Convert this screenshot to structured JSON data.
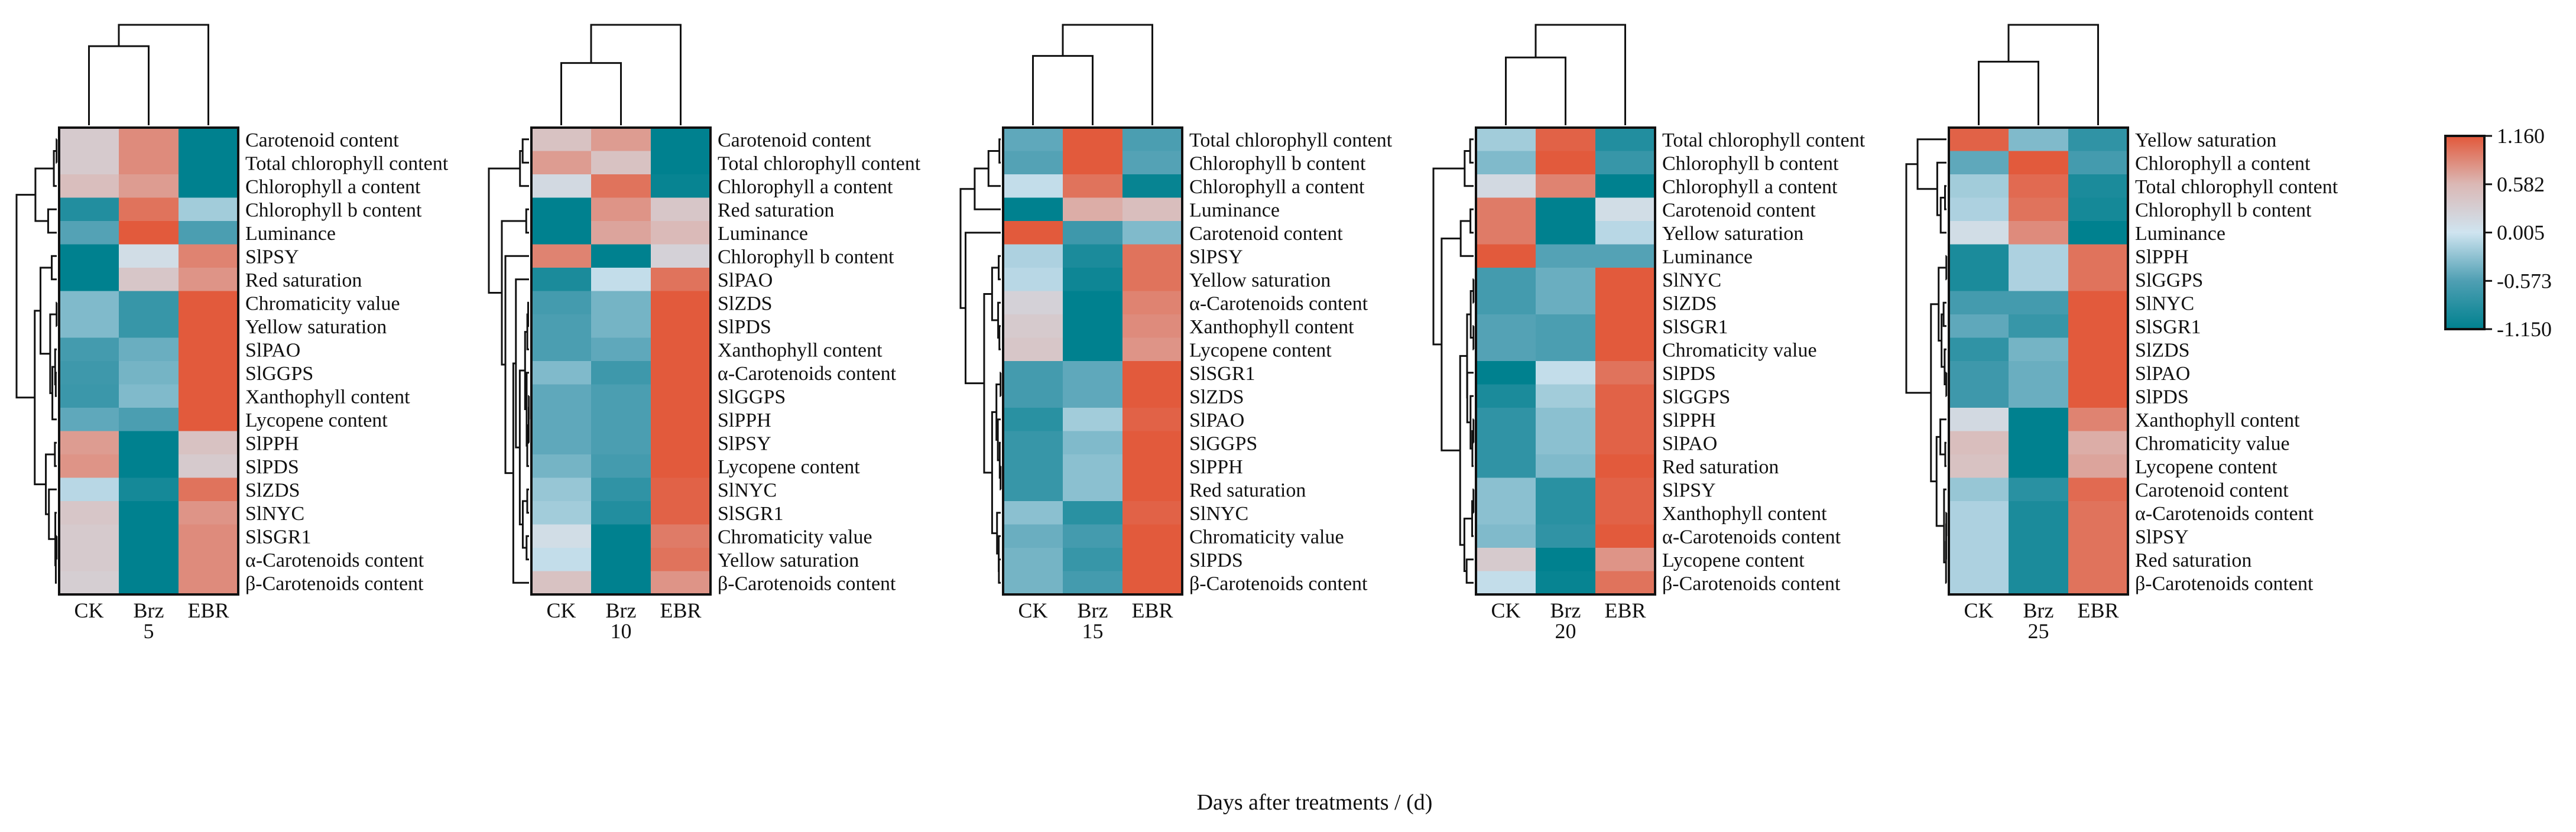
{
  "chart_data": {
    "type": "heatmap",
    "title": "",
    "xlabel": "Days after treatments / (d)",
    "colorbar": {
      "min": -1.15,
      "max": 1.16,
      "ticks": [
        "1.160",
        "0.582",
        "0.005",
        "-0.573",
        "-1.150"
      ],
      "tick_values": [
        1.16,
        0.582,
        0.005,
        -0.573,
        -1.15
      ],
      "colors": [
        "#e2583a",
        "#dbb8b5",
        "#cfe4f0",
        "#4f9fb3",
        "#00818f"
      ]
    },
    "panels": [
      {
        "day": "5",
        "columns": [
          "CK",
          "Brz",
          "EBR"
        ],
        "rows": [
          "Carotenoid content",
          "Total chlorophyll content",
          "Chlorophyll a content",
          "Chlorophyll b content",
          "Luminance",
          "SlPSY",
          "Red saturation",
          "Chromaticity value",
          "Yellow saturation",
          "SlPAO",
          "SlGGPS",
          "Xanthophyll content",
          "Lycopene content",
          "SlPPH",
          "SlPDS",
          "SlZDS",
          "SlNYC",
          "SlSGR1",
          "α-Carotenoids content",
          "β-Carotenoids content"
        ],
        "values": [
          [
            0.35,
            0.85,
            -1.15
          ],
          [
            0.35,
            0.85,
            -1.15
          ],
          [
            0.5,
            0.75,
            -1.15
          ],
          [
            -0.9,
            1.0,
            -0.2
          ],
          [
            -0.55,
            1.15,
            -0.6
          ],
          [
            -1.15,
            0.1,
            0.9
          ],
          [
            -1.15,
            0.4,
            0.8
          ],
          [
            -0.35,
            -0.75,
            1.15
          ],
          [
            -0.35,
            -0.75,
            1.15
          ],
          [
            -0.65,
            -0.45,
            1.15
          ],
          [
            -0.7,
            -0.4,
            1.15
          ],
          [
            -0.72,
            -0.35,
            1.15
          ],
          [
            -0.5,
            -0.6,
            1.15
          ],
          [
            0.75,
            -1.15,
            0.45
          ],
          [
            0.8,
            -1.15,
            0.35
          ],
          [
            -0.1,
            -1.0,
            1.0
          ],
          [
            0.4,
            -1.15,
            0.8
          ],
          [
            0.35,
            -1.15,
            0.85
          ],
          [
            0.35,
            -1.15,
            0.85
          ],
          [
            0.3,
            -1.15,
            0.85
          ]
        ]
      },
      {
        "day": "10",
        "columns": [
          "CK",
          "Brz",
          "EBR"
        ],
        "rows": [
          "Carotenoid content",
          "Total chlorophyll content",
          "Chlorophyll a content",
          "Red saturation",
          "Luminance",
          "Chlorophyll b content",
          "SlPAO",
          "SlZDS",
          "SlPDS",
          "Xanthophyll content",
          "α-Carotenoids content",
          "SlGGPS",
          "SlPPH",
          "SlPSY",
          "Lycopene content",
          "SlNYC",
          "SlSGR1",
          "Chromaticity value",
          "Yellow saturation",
          "β-Carotenoids content"
        ],
        "values": [
          [
            0.45,
            0.75,
            -1.15
          ],
          [
            0.75,
            0.45,
            -1.15
          ],
          [
            0.15,
            1.0,
            -1.1
          ],
          [
            -1.15,
            0.8,
            0.4
          ],
          [
            -1.15,
            0.7,
            0.55
          ],
          [
            0.9,
            -1.15,
            0.25
          ],
          [
            -0.95,
            -0.05,
            1.0
          ],
          [
            -0.65,
            -0.4,
            1.15
          ],
          [
            -0.6,
            -0.4,
            1.15
          ],
          [
            -0.6,
            -0.5,
            1.15
          ],
          [
            -0.35,
            -0.7,
            1.15
          ],
          [
            -0.5,
            -0.6,
            1.15
          ],
          [
            -0.5,
            -0.6,
            1.15
          ],
          [
            -0.5,
            -0.6,
            1.15
          ],
          [
            -0.4,
            -0.65,
            1.15
          ],
          [
            -0.25,
            -0.8,
            1.1
          ],
          [
            -0.2,
            -0.9,
            1.1
          ],
          [
            0.1,
            -1.15,
            0.95
          ],
          [
            -0.05,
            -1.15,
            1.0
          ],
          [
            0.45,
            -1.15,
            0.8
          ]
        ]
      },
      {
        "day": "15",
        "columns": [
          "CK",
          "Brz",
          "EBR"
        ],
        "rows": [
          "Total chlorophyll content",
          "Chlorophyll b content",
          "Chlorophyll a content",
          "Luminance",
          "Carotenoid content",
          "SlPSY",
          "Yellow saturation",
          "α-Carotenoids content",
          "Xanthophyll content",
          "Lycopene content",
          "SlSGR1",
          "SlZDS",
          "SlPAO",
          "SlGGPS",
          "SlPPH",
          "Red saturation",
          "SlNYC",
          "Chromaticity value",
          "SlPDS",
          "β-Carotenoids content"
        ],
        "values": [
          [
            -0.5,
            1.15,
            -0.6
          ],
          [
            -0.55,
            1.15,
            -0.55
          ],
          [
            -0.05,
            1.0,
            -1.1
          ],
          [
            -1.15,
            0.65,
            0.5
          ],
          [
            1.15,
            -0.7,
            -0.35
          ],
          [
            -0.15,
            -0.95,
            1.0
          ],
          [
            -0.1,
            -1.05,
            1.0
          ],
          [
            0.25,
            -1.15,
            0.9
          ],
          [
            0.35,
            -1.15,
            0.85
          ],
          [
            0.4,
            -1.15,
            0.8
          ],
          [
            -0.65,
            -0.5,
            1.15
          ],
          [
            -0.65,
            -0.5,
            1.15
          ],
          [
            -0.85,
            -0.2,
            1.1
          ],
          [
            -0.75,
            -0.35,
            1.15
          ],
          [
            -0.75,
            -0.3,
            1.15
          ],
          [
            -0.75,
            -0.3,
            1.15
          ],
          [
            -0.3,
            -0.85,
            1.1
          ],
          [
            -0.45,
            -0.65,
            1.15
          ],
          [
            -0.4,
            -0.75,
            1.15
          ],
          [
            -0.4,
            -0.65,
            1.15
          ]
        ]
      },
      {
        "day": "20",
        "columns": [
          "CK",
          "Brz",
          "EBR"
        ],
        "rows": [
          "Total chlorophyll content",
          "Chlorophyll b content",
          "Chlorophyll a content",
          "Carotenoid content",
          "Yellow saturation",
          "Luminance",
          "SlNYC",
          "SlZDS",
          "SlSGR1",
          "Chromaticity value",
          "SlPDS",
          "SlGGPS",
          "SlPPH",
          "SlPAO",
          "Red saturation",
          "SlPSY",
          "Xanthophyll content",
          "α-Carotenoids content",
          "Lycopene content",
          "β-Carotenoids content"
        ],
        "values": [
          [
            -0.2,
            1.1,
            -0.9
          ],
          [
            -0.35,
            1.15,
            -0.75
          ],
          [
            0.15,
            0.9,
            -1.15
          ],
          [
            0.95,
            -1.15,
            0.1
          ],
          [
            0.95,
            -1.15,
            -0.1
          ],
          [
            1.15,
            -0.55,
            -0.55
          ],
          [
            -0.65,
            -0.45,
            1.15
          ],
          [
            -0.65,
            -0.45,
            1.15
          ],
          [
            -0.55,
            -0.6,
            1.15
          ],
          [
            -0.55,
            -0.6,
            1.15
          ],
          [
            -1.15,
            -0.05,
            1.0
          ],
          [
            -0.95,
            -0.2,
            1.1
          ],
          [
            -0.8,
            -0.3,
            1.1
          ],
          [
            -0.8,
            -0.3,
            1.1
          ],
          [
            -0.8,
            -0.35,
            1.15
          ],
          [
            -0.3,
            -0.85,
            1.1
          ],
          [
            -0.3,
            -0.85,
            1.1
          ],
          [
            -0.35,
            -0.8,
            1.15
          ],
          [
            0.35,
            -1.15,
            0.8
          ],
          [
            -0.05,
            -1.1,
            1.0
          ]
        ]
      },
      {
        "day": "25",
        "columns": [
          "CK",
          "Brz",
          "EBR"
        ],
        "rows": [
          "Yellow saturation",
          "Chlorophyll a content",
          "Total chlorophyll content",
          "Chlorophyll b content",
          "Luminance",
          "SlPPH",
          "SlGGPS",
          "SlNYC",
          "SlSGR1",
          "SlZDS",
          "SlPAO",
          "SlPDS",
          "Xanthophyll content",
          "Chromaticity value",
          "Lycopene content",
          "Carotenoid content",
          "α-Carotenoids content",
          "SlPSY",
          "Red saturation",
          "β-Carotenoids content"
        ],
        "values": [
          [
            1.1,
            -0.35,
            -0.8
          ],
          [
            -0.5,
            1.15,
            -0.65
          ],
          [
            -0.2,
            1.05,
            -0.95
          ],
          [
            -0.15,
            1.0,
            -1.0
          ],
          [
            0.1,
            0.85,
            -1.15
          ],
          [
            -0.95,
            -0.15,
            1.0
          ],
          [
            -0.95,
            -0.15,
            1.0
          ],
          [
            -0.65,
            -0.65,
            1.15
          ],
          [
            -0.5,
            -0.75,
            1.15
          ],
          [
            -0.8,
            -0.4,
            1.15
          ],
          [
            -0.7,
            -0.45,
            1.15
          ],
          [
            -0.7,
            -0.45,
            1.15
          ],
          [
            0.15,
            -1.15,
            0.9
          ],
          [
            0.5,
            -1.15,
            0.65
          ],
          [
            0.45,
            -1.15,
            0.7
          ],
          [
            -0.25,
            -0.85,
            1.05
          ],
          [
            -0.15,
            -0.95,
            1.0
          ],
          [
            -0.15,
            -0.95,
            1.0
          ],
          [
            -0.15,
            -0.95,
            1.0
          ],
          [
            -0.15,
            -0.95,
            1.0
          ]
        ]
      }
    ]
  }
}
